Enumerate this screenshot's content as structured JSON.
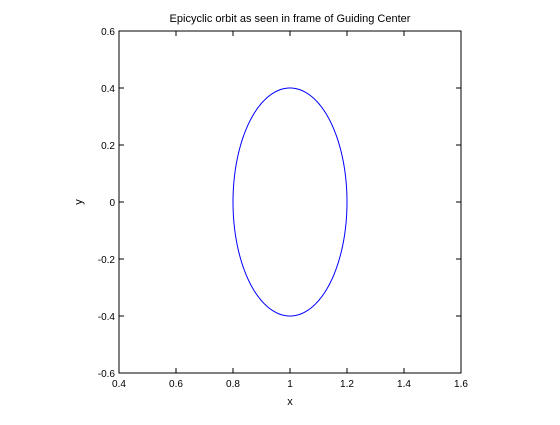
{
  "chart_data": {
    "type": "line",
    "title": "Epicyclic orbit as seen in frame of Guiding Center",
    "xlabel": "x",
    "ylabel": "y",
    "xlim": [
      0.4,
      1.6
    ],
    "ylim": [
      -0.6,
      0.6
    ],
    "xticks": [
      0.4,
      0.6,
      0.8,
      1.0,
      1.2,
      1.4,
      1.6
    ],
    "xtick_labels": [
      "0.4",
      "0.6",
      "0.8",
      "1",
      "1.2",
      "1.4",
      "1.6"
    ],
    "yticks": [
      -0.6,
      -0.4,
      -0.2,
      0.0,
      0.2,
      0.4,
      0.6
    ],
    "ytick_labels": [
      "-0.6",
      "-0.4",
      "-0.2",
      "0",
      "0.2",
      "0.4",
      "0.6"
    ],
    "grid": false,
    "series": [
      {
        "color": "#0000ff",
        "shape": "ellipse",
        "center": [
          1.0,
          0.0
        ],
        "x_semi_axis": 0.2,
        "y_semi_axis": 0.4
      }
    ]
  }
}
